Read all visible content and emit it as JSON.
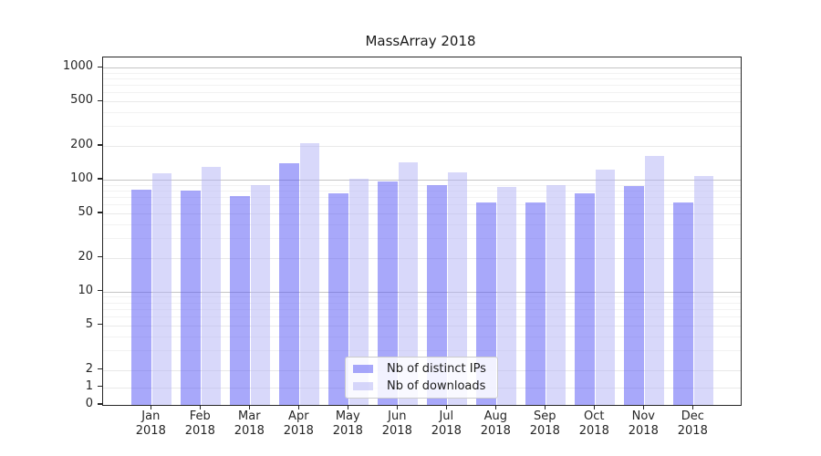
{
  "title": "MassArray 2018",
  "legend": {
    "items": [
      {
        "label": "Nb of distinct IPs",
        "series_key": "ips"
      },
      {
        "label": "Nb of downloads",
        "series_key": "downloads"
      }
    ]
  },
  "colors": {
    "bar_ips": "#5252f5",
    "bar_downloads": "#b2b2f5",
    "bar_alpha": 0.5,
    "grid_major": "#c5c5c5",
    "grid_tick": "#e9e9e9",
    "grid_minor": "#f2f2f2",
    "axis": "#262626",
    "legend_border": "#cccccc"
  },
  "chart_data": {
    "type": "bar",
    "title": "MassArray 2018",
    "months": [
      "Jan",
      "Feb",
      "Mar",
      "Apr",
      "May",
      "Jun",
      "Jul",
      "Aug",
      "Sep",
      "Oct",
      "Nov",
      "Dec"
    ],
    "year_label": "2018",
    "series": [
      {
        "name": "Nb of distinct IPs",
        "values": [
          82,
          80,
          71,
          140,
          75,
          97,
          90,
          63,
          63,
          75,
          87,
          62
        ]
      },
      {
        "name": "Nb of downloads",
        "values": [
          113,
          131,
          89,
          210,
          102,
          142,
          117,
          86,
          89,
          123,
          163,
          108
        ]
      }
    ],
    "yscale": "symlog",
    "yticks": [
      0,
      1,
      2,
      5,
      10,
      20,
      50,
      100,
      200,
      500,
      1000
    ],
    "ylim": [
      0,
      1400
    ],
    "grid": true,
    "legend_position": "lower center"
  }
}
